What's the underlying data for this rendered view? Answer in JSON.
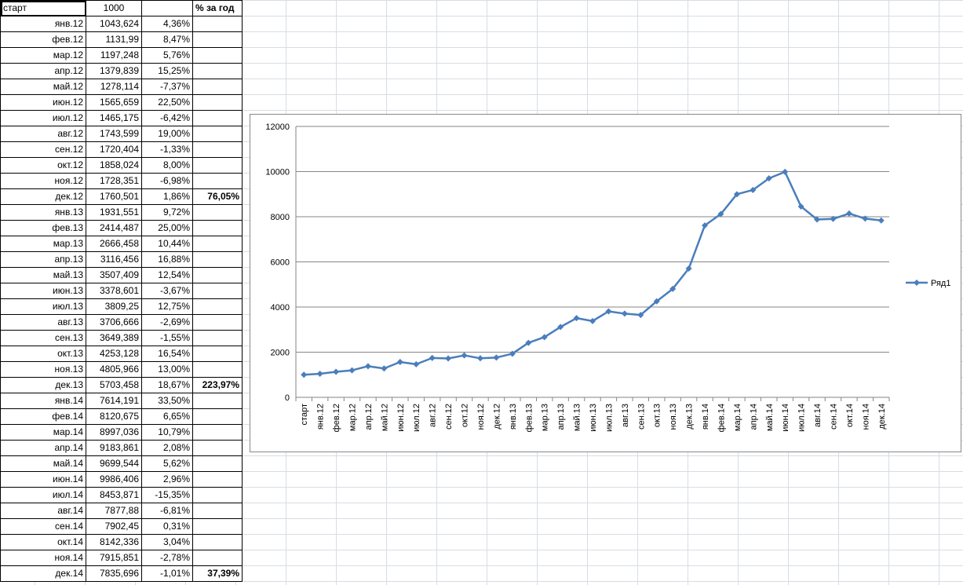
{
  "sheet": {
    "header": {
      "label": "старт",
      "value": "1000",
      "pct_header": "% за год"
    },
    "rows": [
      {
        "label": "янв.12",
        "value": "1043,624",
        "pct": "4,36%",
        "year": ""
      },
      {
        "label": "фев.12",
        "value": "1131,99",
        "pct": "8,47%",
        "year": ""
      },
      {
        "label": "мар.12",
        "value": "1197,248",
        "pct": "5,76%",
        "year": ""
      },
      {
        "label": "апр.12",
        "value": "1379,839",
        "pct": "15,25%",
        "year": ""
      },
      {
        "label": "май.12",
        "value": "1278,114",
        "pct": "-7,37%",
        "year": ""
      },
      {
        "label": "июн.12",
        "value": "1565,659",
        "pct": "22,50%",
        "year": ""
      },
      {
        "label": "июл.12",
        "value": "1465,175",
        "pct": "-6,42%",
        "year": ""
      },
      {
        "label": "авг.12",
        "value": "1743,599",
        "pct": "19,00%",
        "year": ""
      },
      {
        "label": "сен.12",
        "value": "1720,404",
        "pct": "-1,33%",
        "year": ""
      },
      {
        "label": "окт.12",
        "value": "1858,024",
        "pct": "8,00%",
        "year": ""
      },
      {
        "label": "ноя.12",
        "value": "1728,351",
        "pct": "-6,98%",
        "year": ""
      },
      {
        "label": "дек.12",
        "value": "1760,501",
        "pct": "1,86%",
        "year": "76,05%"
      },
      {
        "label": "янв.13",
        "value": "1931,551",
        "pct": "9,72%",
        "year": ""
      },
      {
        "label": "фев.13",
        "value": "2414,487",
        "pct": "25,00%",
        "year": ""
      },
      {
        "label": "мар.13",
        "value": "2666,458",
        "pct": "10,44%",
        "year": ""
      },
      {
        "label": "апр.13",
        "value": "3116,456",
        "pct": "16,88%",
        "year": ""
      },
      {
        "label": "май.13",
        "value": "3507,409",
        "pct": "12,54%",
        "year": ""
      },
      {
        "label": "июн.13",
        "value": "3378,601",
        "pct": "-3,67%",
        "year": ""
      },
      {
        "label": "июл.13",
        "value": "3809,25",
        "pct": "12,75%",
        "year": ""
      },
      {
        "label": "авг.13",
        "value": "3706,666",
        "pct": "-2,69%",
        "year": ""
      },
      {
        "label": "сен.13",
        "value": "3649,389",
        "pct": "-1,55%",
        "year": ""
      },
      {
        "label": "окт.13",
        "value": "4253,128",
        "pct": "16,54%",
        "year": ""
      },
      {
        "label": "ноя.13",
        "value": "4805,966",
        "pct": "13,00%",
        "year": ""
      },
      {
        "label": "дек.13",
        "value": "5703,458",
        "pct": "18,67%",
        "year": "223,97%"
      },
      {
        "label": "янв.14",
        "value": "7614,191",
        "pct": "33,50%",
        "year": ""
      },
      {
        "label": "фев.14",
        "value": "8120,675",
        "pct": "6,65%",
        "year": ""
      },
      {
        "label": "мар.14",
        "value": "8997,036",
        "pct": "10,79%",
        "year": ""
      },
      {
        "label": "апр.14",
        "value": "9183,861",
        "pct": "2,08%",
        "year": ""
      },
      {
        "label": "май.14",
        "value": "9699,544",
        "pct": "5,62%",
        "year": ""
      },
      {
        "label": "июн.14",
        "value": "9986,406",
        "pct": "2,96%",
        "year": ""
      },
      {
        "label": "июл.14",
        "value": "8453,871",
        "pct": "-15,35%",
        "year": ""
      },
      {
        "label": "авг.14",
        "value": "7877,88",
        "pct": "-6,81%",
        "year": ""
      },
      {
        "label": "сен.14",
        "value": "7902,45",
        "pct": "0,31%",
        "year": ""
      },
      {
        "label": "окт.14",
        "value": "8142,336",
        "pct": "3,04%",
        "year": ""
      },
      {
        "label": "ноя.14",
        "value": "7915,851",
        "pct": "-2,78%",
        "year": ""
      },
      {
        "label": "дек.14",
        "value": "7835,696",
        "pct": "-1,01%",
        "year": "37,39%"
      }
    ]
  },
  "chart_data": {
    "type": "line",
    "title": "",
    "xlabel": "",
    "ylabel": "",
    "categories": [
      "старт",
      "янв.12",
      "фев.12",
      "мар.12",
      "апр.12",
      "май.12",
      "июн.12",
      "июл.12",
      "авг.12",
      "сен.12",
      "окт.12",
      "ноя.12",
      "дек.12",
      "янв.13",
      "фев.13",
      "мар.13",
      "апр.13",
      "май.13",
      "июн.13",
      "июл.13",
      "авг.13",
      "сен.13",
      "окт.13",
      "ноя.13",
      "дек.13",
      "янв.14",
      "фев.14",
      "мар.14",
      "апр.14",
      "май.14",
      "июн.14",
      "июл.14",
      "авг.14",
      "сен.14",
      "окт.14",
      "ноя.14",
      "дек.14"
    ],
    "series": [
      {
        "name": "Ряд1",
        "color": "#4a7ebb",
        "values": [
          1000,
          1043.624,
          1131.99,
          1197.248,
          1379.839,
          1278.114,
          1565.659,
          1465.175,
          1743.599,
          1720.404,
          1858.024,
          1728.351,
          1760.501,
          1931.551,
          2414.487,
          2666.458,
          3116.456,
          3507.409,
          3378.601,
          3809.25,
          3706.666,
          3649.389,
          4253.128,
          4805.966,
          5703.458,
          7614.191,
          8120.675,
          8997.036,
          9183.861,
          9699.544,
          9986.406,
          8453.871,
          7877.88,
          7902.45,
          8142.336,
          7915.851,
          7835.696
        ]
      }
    ],
    "ylim": [
      0,
      12000
    ],
    "yticks": [
      "0",
      "2000",
      "4000",
      "6000",
      "8000",
      "10000",
      "12000"
    ],
    "grid": true,
    "legend": "right",
    "marker": "diamond"
  }
}
